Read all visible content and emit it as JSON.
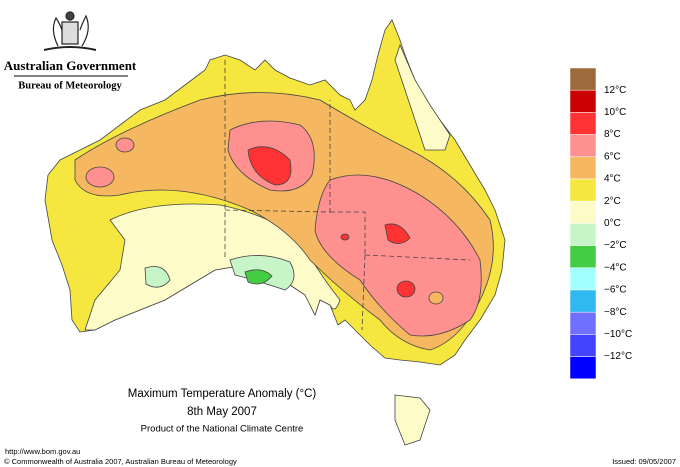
{
  "header": {
    "government": "Australian Government",
    "agency": "Bureau of Meteorology"
  },
  "legend": {
    "labels": [
      "12°C",
      "10°C",
      "8°C",
      "6°C",
      "4°C",
      "2°C",
      "0°C",
      "−2°C",
      "−4°C",
      "−6°C",
      "−8°C",
      "−10°C",
      "−12°C"
    ],
    "colors": [
      "#9c6b3c",
      "#cc0000",
      "#ff3333",
      "#ff9090",
      "#f5b860",
      "#f5e640",
      "#fdfbc8",
      "#c8f5c8",
      "#44cc44",
      "#a0ffff",
      "#30b8f0",
      "#7070ff",
      "#4444ff",
      "#0000ff"
    ]
  },
  "footer": {
    "title": "Maximum Temperature Anomaly (°C)",
    "date": "8th May 2007",
    "product": "Product of the National Climate Centre",
    "url": "http://www.bom.gov.au",
    "copyright": "© Commonwealth of Australia 2007, Australian Bureau of Meteorology",
    "issued": "Issued: 09/05/2007"
  }
}
